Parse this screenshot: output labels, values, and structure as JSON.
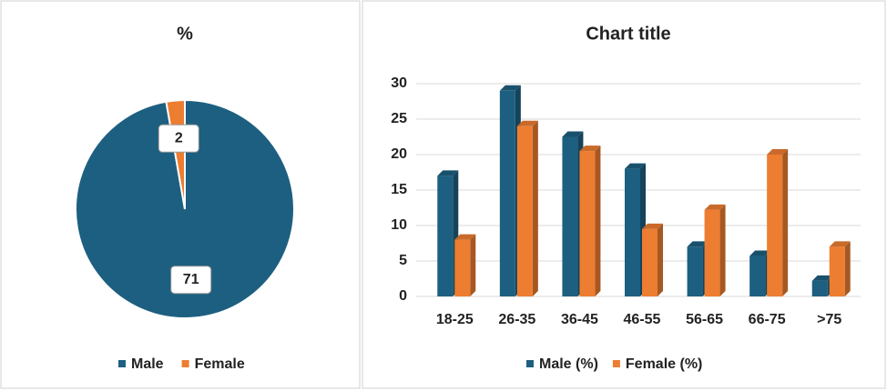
{
  "chart_data": [
    {
      "type": "pie",
      "title": "%",
      "categories": [
        "Male",
        "Female"
      ],
      "values": [
        71,
        2
      ],
      "colors": [
        "#1d5f80",
        "#ed7d31"
      ],
      "legend": "bottom"
    },
    {
      "type": "bar",
      "title": "Chart title",
      "categories": [
        "18-25",
        "26-35",
        "36-45",
        "46-55",
        "56-65",
        "66-75",
        ">75"
      ],
      "series": [
        {
          "name": "Male (%)",
          "color": "#1d5f80",
          "values": [
            17,
            29,
            22.5,
            18,
            7,
            5.7,
            2.2
          ]
        },
        {
          "name": "Female (%)",
          "color": "#ed7d31",
          "values": [
            8,
            24,
            20.5,
            9.5,
            12.2,
            20,
            7
          ]
        }
      ],
      "ylim": [
        0,
        30
      ],
      "yticks": [
        0,
        5,
        10,
        15,
        20,
        25,
        30
      ],
      "grid": true,
      "legend": "bottom"
    }
  ]
}
